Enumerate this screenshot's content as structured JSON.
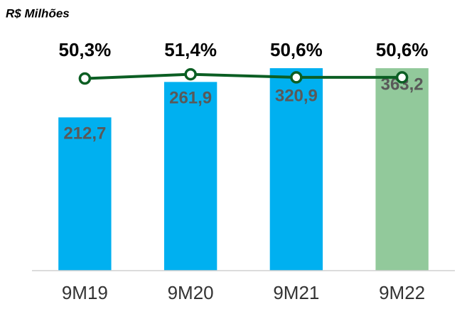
{
  "chart_data": {
    "type": "bar_line",
    "title": "R$ Milhões",
    "categories": [
      "9M19",
      "9M20",
      "9M21",
      "9M22"
    ],
    "series": [
      {
        "type": "bar",
        "colors": [
          "#00b0f0",
          "#00b0f0",
          "#00b0f0",
          "#92c99b"
        ],
        "values": [
          212.7,
          261.9,
          320.9,
          363.2
        ],
        "value_labels": [
          "212,7",
          "261,9",
          "320,9",
          "363,2"
        ]
      },
      {
        "type": "line",
        "axis": "y2",
        "color": "#0b5e23",
        "values": [
          50.3,
          51.4,
          50.6,
          50.6
        ],
        "value_labels": [
          "50,3%",
          "51,4%",
          "50,6%",
          "50,6%"
        ]
      }
    ],
    "ylim": [
      0,
      281
    ],
    "y2lim": [
      0,
      53
    ]
  }
}
